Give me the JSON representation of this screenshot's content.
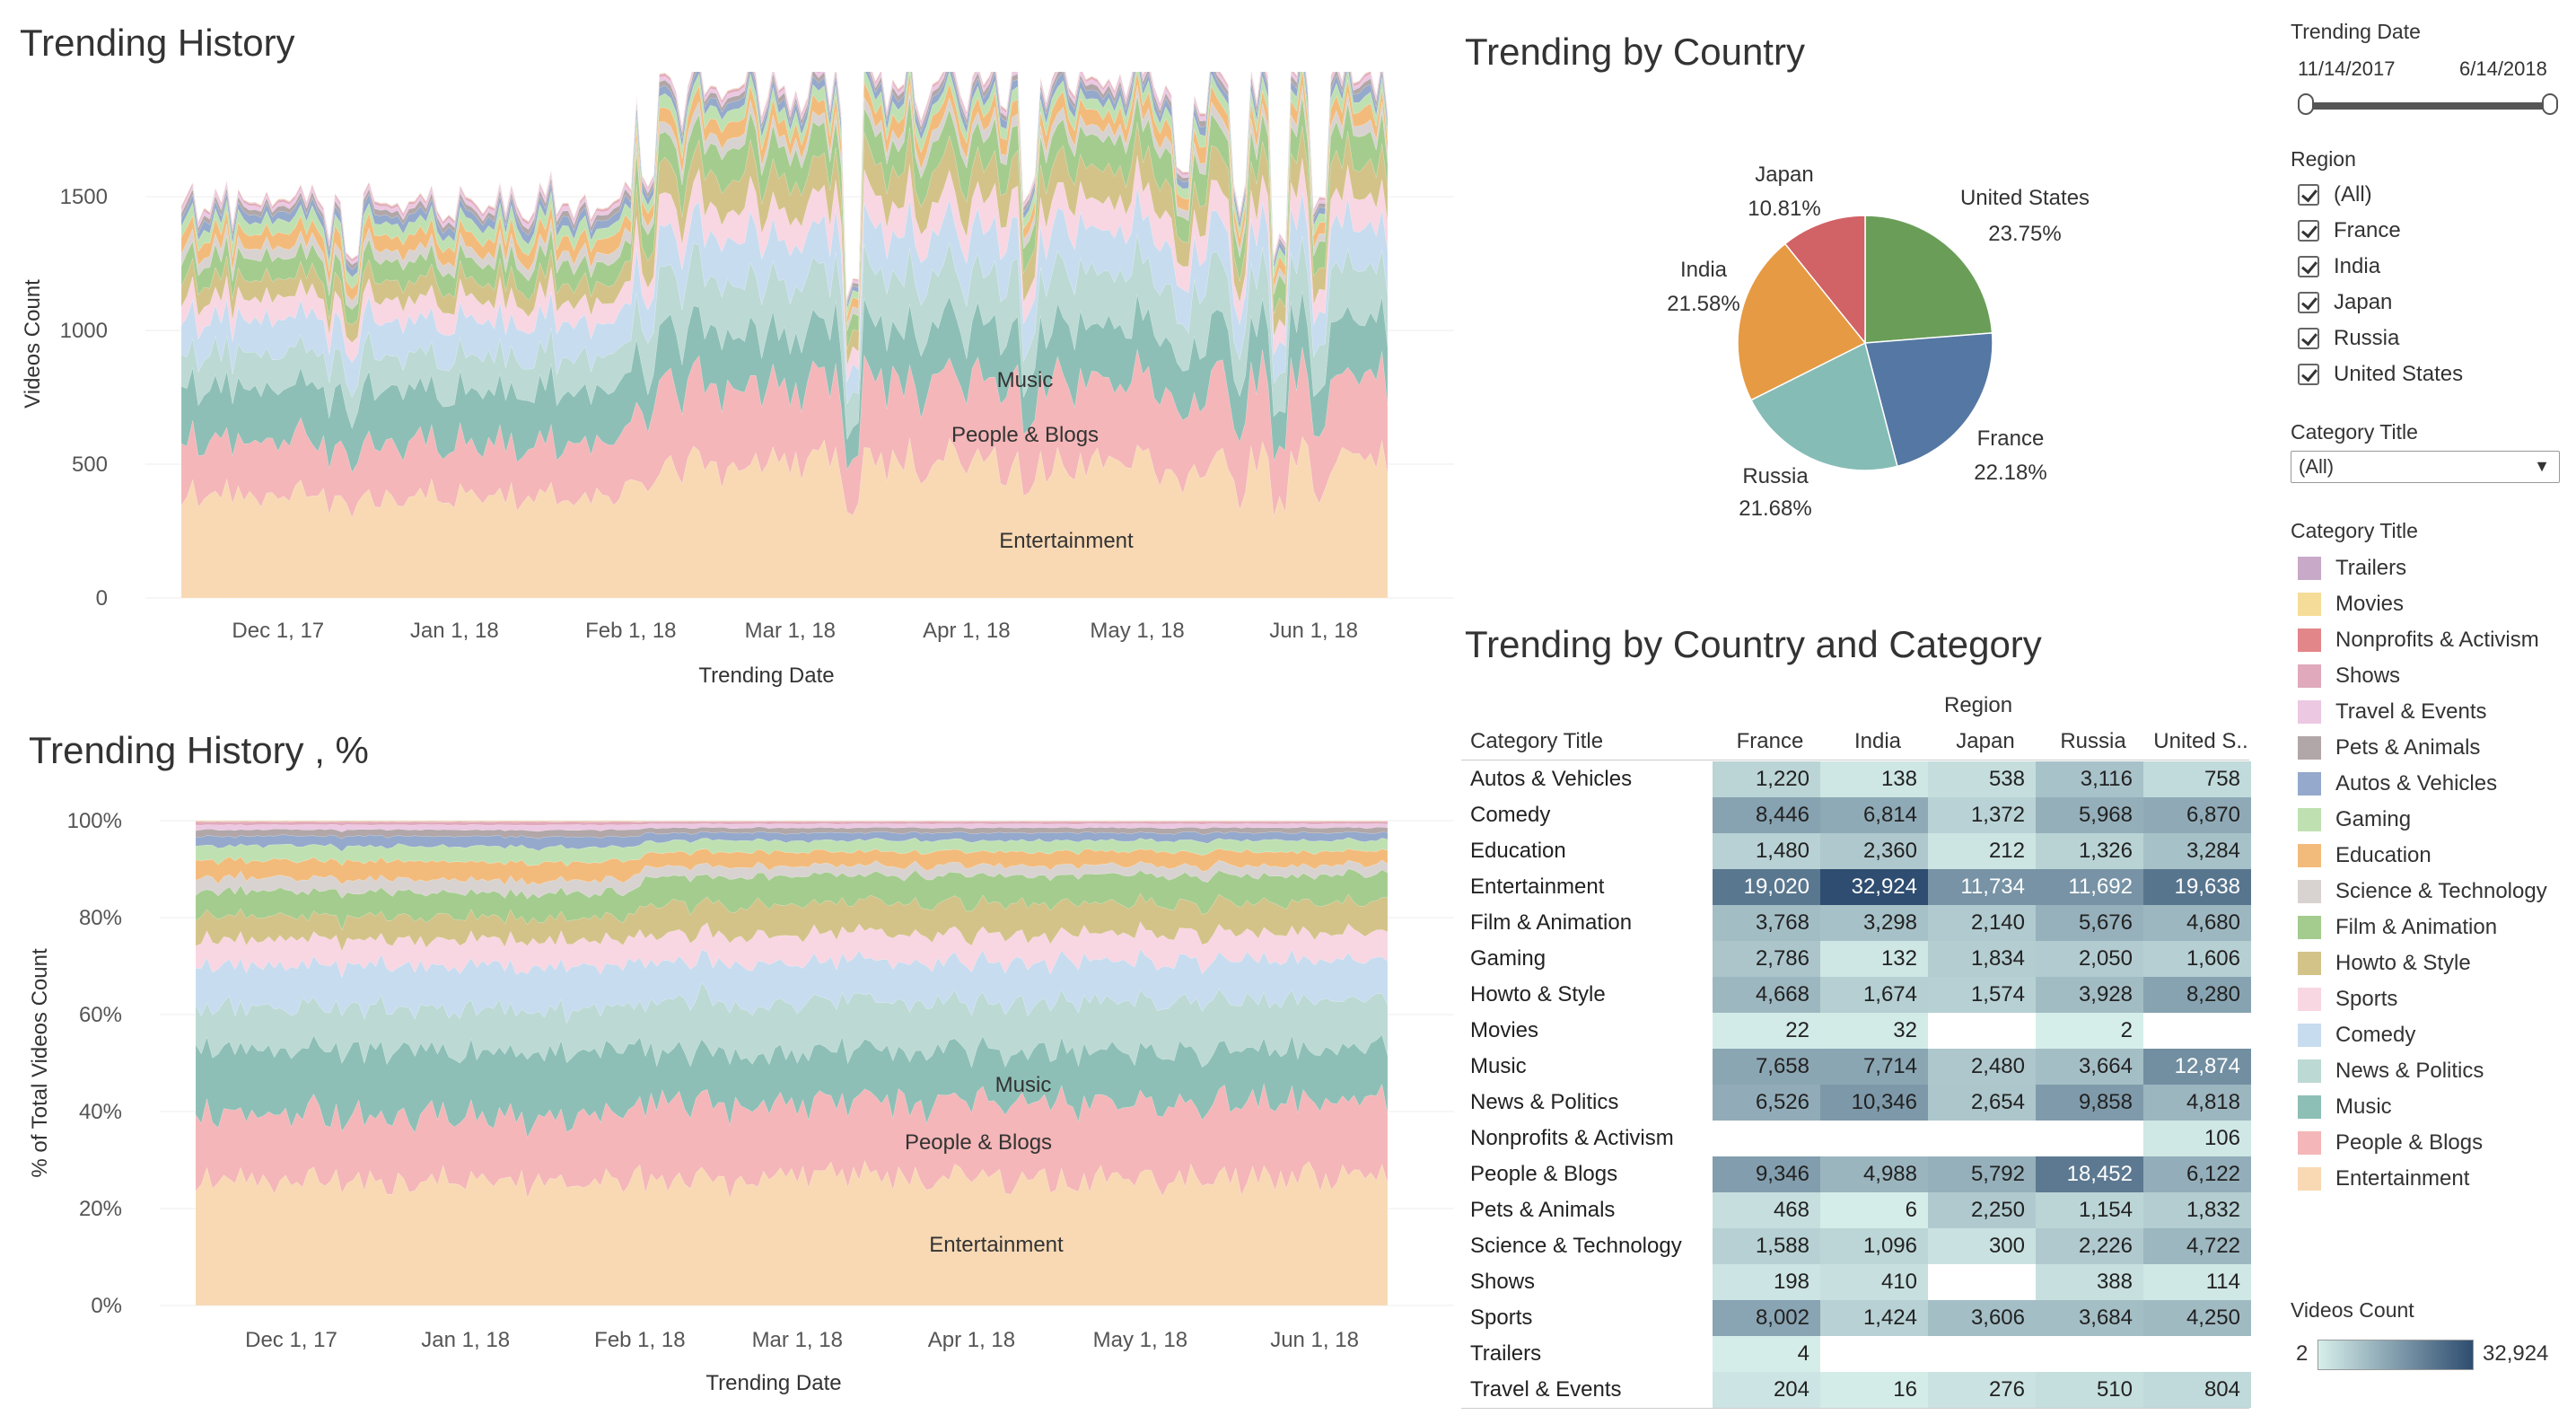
{
  "titles": {
    "history": "Trending History",
    "history_pct": "Trending History , %",
    "by_country": "Trending by Country",
    "by_country_category": "Trending by Country and Category"
  },
  "filters": {
    "date_title": "Trending Date",
    "date_start": "11/14/2017",
    "date_end": "6/14/2018",
    "region_title": "Region",
    "regions": [
      "(All)",
      "France",
      "India",
      "Japan",
      "Russia",
      "United States"
    ],
    "category_dropdown_title": "Category Title",
    "category_dropdown_value": "(All)"
  },
  "legend": {
    "title": "Category Title",
    "items": [
      {
        "label": "Trailers",
        "color": "#c8a9c7"
      },
      {
        "label": "Movies",
        "color": "#f5dd99"
      },
      {
        "label": "Nonprofits & Activism",
        "color": "#e2868a"
      },
      {
        "label": "Shows",
        "color": "#e0a9bc"
      },
      {
        "label": "Travel & Events",
        "color": "#ecc8e2"
      },
      {
        "label": "Pets & Animals",
        "color": "#b2a7a8"
      },
      {
        "label": "Autos & Vehicles",
        "color": "#94a9cb"
      },
      {
        "label": "Gaming",
        "color": "#bfe1b2"
      },
      {
        "label": "Education",
        "color": "#f3bb7b"
      },
      {
        "label": "Science & Technology",
        "color": "#d8d3d0"
      },
      {
        "label": "Film & Animation",
        "color": "#a4cc8e"
      },
      {
        "label": "Howto & Style",
        "color": "#d3c389"
      },
      {
        "label": "Sports",
        "color": "#f8d6e2"
      },
      {
        "label": "Comedy",
        "color": "#c7dcef"
      },
      {
        "label": "News & Politics",
        "color": "#bcd9d4"
      },
      {
        "label": "Music",
        "color": "#8dbfb6"
      },
      {
        "label": "People & Blogs",
        "color": "#f4b6b8"
      },
      {
        "label": "Entertainment",
        "color": "#f8d9b4"
      }
    ]
  },
  "color_scale": {
    "title": "Videos Count",
    "min_label": "2",
    "max_label": "32,924",
    "min_color": "#d6eeea",
    "max_color": "#2e4d70"
  },
  "chart_data": [
    {
      "type": "area",
      "title": "Trending History",
      "xlabel": "Trending Date",
      "ylabel": "Videos Count",
      "x_ticks": [
        "Dec 1, 17",
        "Jan 1, 18",
        "Feb 1, 18",
        "Mar 1, 18",
        "Apr 1, 18",
        "May 1, 18",
        "Jun 1, 18"
      ],
      "y_ticks": [
        "0",
        "500",
        "1000",
        "1500"
      ],
      "ylim": [
        0,
        1900
      ],
      "stacked": true,
      "series_labels_shown": [
        "Entertainment",
        "People & Blogs",
        "Music"
      ],
      "series": [
        {
          "name": "Entertainment",
          "approx_values": {
            "before_feb_2018": 380,
            "after_feb_2018": 510
          }
        },
        {
          "name": "People & Blogs",
          "approx_values": {
            "before_feb_2018": 200,
            "after_feb_2018": 300
          }
        },
        {
          "name": "Music",
          "approx_values": {
            "before_feb_2018": 200,
            "after_feb_2018": 200
          }
        }
      ],
      "total_approx": {
        "before_feb_2018": 1480,
        "after_feb_2018": 1780
      },
      "grid": true
    },
    {
      "type": "area",
      "title": "Trending History , %",
      "xlabel": "Trending Date",
      "ylabel": "% of Total Videos Count",
      "x_ticks": [
        "Dec 1, 17",
        "Jan 1, 18",
        "Feb 1, 18",
        "Mar 1, 18",
        "Apr 1, 18",
        "May 1, 18",
        "Jun 1, 18"
      ],
      "y_ticks": [
        "0%",
        "20%",
        "40%",
        "60%",
        "80%",
        "100%"
      ],
      "ylim": [
        0,
        100
      ],
      "stacked": true,
      "normalized": true,
      "series_labels_shown": [
        "Entertainment",
        "People & Blogs",
        "Music"
      ],
      "grid": true
    },
    {
      "type": "pie",
      "title": "Trending by Country",
      "slices": [
        {
          "label": "United States",
          "value": 23.75,
          "display": "23.75%",
          "color": "#6a9e58"
        },
        {
          "label": "France",
          "value": 22.18,
          "display": "22.18%",
          "color": "#5577a3"
        },
        {
          "label": "Russia",
          "value": 21.68,
          "display": "21.68%",
          "color": "#86bcb6"
        },
        {
          "label": "India",
          "value": 21.58,
          "display": "21.58%",
          "color": "#e69a43"
        },
        {
          "label": "Japan",
          "value": 10.81,
          "display": "10.81%",
          "color": "#d16265"
        }
      ]
    },
    {
      "type": "heatmap",
      "title": "Trending by Country and Category",
      "row_header": "Category Title",
      "column_group_header": "Region",
      "columns": [
        "France",
        "India",
        "Japan",
        "Russia",
        "United S.."
      ],
      "rows": [
        {
          "category": "Autos & Vehicles",
          "values": [
            1220,
            138,
            538,
            3116,
            758
          ]
        },
        {
          "category": "Comedy",
          "values": [
            8446,
            6814,
            1372,
            5968,
            6870
          ]
        },
        {
          "category": "Education",
          "values": [
            1480,
            2360,
            212,
            1326,
            3284
          ]
        },
        {
          "category": "Entertainment",
          "values": [
            19020,
            32924,
            11734,
            11692,
            19638
          ]
        },
        {
          "category": "Film & Animation",
          "values": [
            3768,
            3298,
            2140,
            5676,
            4680
          ]
        },
        {
          "category": "Gaming",
          "values": [
            2786,
            132,
            1834,
            2050,
            1606
          ]
        },
        {
          "category": "Howto & Style",
          "values": [
            4668,
            1674,
            1574,
            3928,
            8280
          ]
        },
        {
          "category": "Movies",
          "values": [
            22,
            32,
            null,
            2,
            null
          ]
        },
        {
          "category": "Music",
          "values": [
            7658,
            7714,
            2480,
            3664,
            12874
          ]
        },
        {
          "category": "News & Politics",
          "values": [
            6526,
            10346,
            2654,
            9858,
            4818
          ]
        },
        {
          "category": "Nonprofits & Activism",
          "values": [
            null,
            null,
            null,
            null,
            106
          ]
        },
        {
          "category": "People & Blogs",
          "values": [
            9346,
            4988,
            5792,
            18452,
            6122
          ]
        },
        {
          "category": "Pets & Animals",
          "values": [
            468,
            6,
            2250,
            1154,
            1832
          ]
        },
        {
          "category": "Science & Technology",
          "values": [
            1588,
            1096,
            300,
            2226,
            4722
          ]
        },
        {
          "category": "Shows",
          "values": [
            198,
            410,
            null,
            388,
            114
          ]
        },
        {
          "category": "Sports",
          "values": [
            8002,
            1424,
            3606,
            3684,
            4250
          ]
        },
        {
          "category": "Trailers",
          "values": [
            4,
            null,
            null,
            null,
            null
          ]
        },
        {
          "category": "Travel & Events",
          "values": [
            204,
            16,
            276,
            510,
            804
          ]
        }
      ]
    }
  ]
}
